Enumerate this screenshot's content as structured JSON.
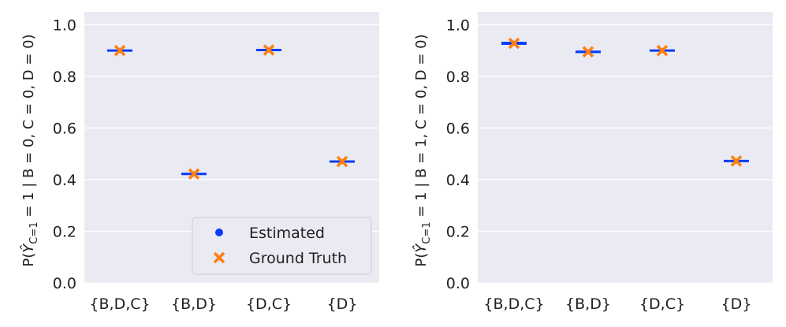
{
  "chart_data": [
    {
      "type": "scatter",
      "ylabel": "P(Ŷᴄ₌₁ = 1 | B = 0, C = 0, D = 0)",
      "ylabel_parts": {
        "p": "P(",
        "y": "Ŷ",
        "sub": "C=1",
        "rest": " = 1 | B = 0, C = 0, D = 0)"
      },
      "categories": [
        "{B,D,C}",
        "{B,D}",
        "{D,C}",
        "{D}"
      ],
      "ylim": [
        0.0,
        1.05
      ],
      "yticks": [
        "0.0",
        "0.2",
        "0.4",
        "0.6",
        "0.8",
        "1.0"
      ],
      "series": [
        {
          "name": "Estimated",
          "values": [
            0.9,
            0.422,
            0.902,
            0.47
          ],
          "interval_halfwidth": [
            0.004,
            0.003,
            0.004,
            0.003
          ]
        },
        {
          "name": "Ground Truth",
          "values": [
            0.9,
            0.422,
            0.902,
            0.47
          ]
        }
      ],
      "legend": "lower-right",
      "grid": true
    },
    {
      "type": "scatter",
      "ylabel": "P(Ŷᴄ₌₁ = 1 | B = 1, C = 0, D = 0)",
      "ylabel_parts": {
        "p": "P(",
        "y": "Ŷ",
        "sub": "C=1",
        "rest": " = 1 | B = 1, C = 0, D = 0)"
      },
      "categories": [
        "{B,D,C}",
        "{B,D}",
        "{D,C}",
        "{D}"
      ],
      "ylim": [
        0.0,
        1.05
      ],
      "yticks": [
        "0.0",
        "0.2",
        "0.4",
        "0.6",
        "0.8",
        "1.0"
      ],
      "series": [
        {
          "name": "Estimated",
          "values": [
            0.928,
            0.895,
            0.9,
            0.472
          ],
          "interval_halfwidth": [
            0.006,
            0.005,
            0.004,
            0.003
          ]
        },
        {
          "name": "Ground Truth",
          "values": [
            0.928,
            0.895,
            0.9,
            0.472
          ]
        }
      ],
      "legend": "none",
      "grid": true
    }
  ],
  "colors": {
    "estimated": "#0a3cf5",
    "ground_truth": "#ff7f0e",
    "plot_bg": "#eaeaf2",
    "grid": "#ffffff"
  }
}
